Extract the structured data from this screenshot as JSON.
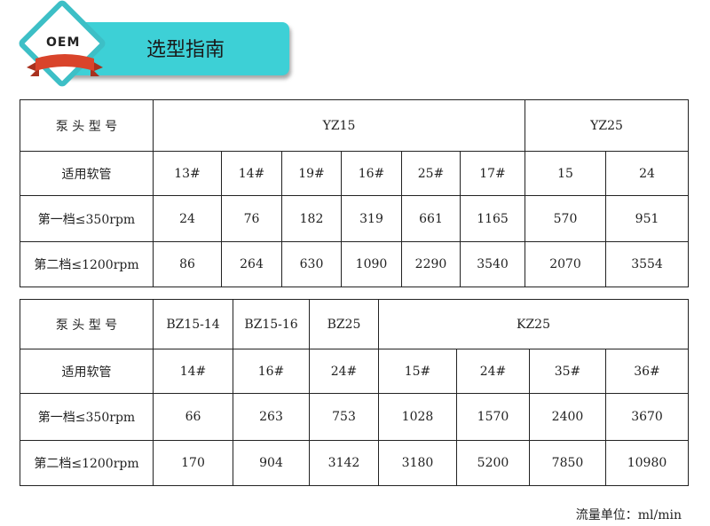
{
  "header": {
    "badge": "OEM",
    "title": "选型指南"
  },
  "table1": {
    "rows": [
      [
        {
          "t": "泵 头 型 号"
        },
        {
          "t": "YZ15",
          "span": 6
        },
        {
          "t": "YZ25",
          "span": 2
        }
      ],
      [
        {
          "t": "适用软管"
        },
        {
          "t": "13#"
        },
        {
          "t": "14#"
        },
        {
          "t": "19#"
        },
        {
          "t": "16#"
        },
        {
          "t": "25#"
        },
        {
          "t": "17#"
        },
        {
          "t": "15"
        },
        {
          "t": "24"
        }
      ],
      [
        {
          "t": "第一档≤350rpm"
        },
        {
          "t": "24"
        },
        {
          "t": "76"
        },
        {
          "t": "182"
        },
        {
          "t": "319"
        },
        {
          "t": "661"
        },
        {
          "t": "1165"
        },
        {
          "t": "570"
        },
        {
          "t": "951"
        }
      ],
      [
        {
          "t": "第二档≤1200rpm"
        },
        {
          "t": "86"
        },
        {
          "t": "264"
        },
        {
          "t": "630"
        },
        {
          "t": "1090"
        },
        {
          "t": "2290"
        },
        {
          "t": "3540"
        },
        {
          "t": "2070"
        },
        {
          "t": "3554"
        }
      ]
    ]
  },
  "table2": {
    "rows": [
      [
        {
          "t": "泵 头 型 号"
        },
        {
          "t": "BZ15-14"
        },
        {
          "t": "BZ15-16"
        },
        {
          "t": "BZ25"
        },
        {
          "t": "KZ25",
          "span": 4
        }
      ],
      [
        {
          "t": "适用软管"
        },
        {
          "t": "14#"
        },
        {
          "t": "16#"
        },
        {
          "t": "24#"
        },
        {
          "t": "15#"
        },
        {
          "t": "24#"
        },
        {
          "t": "35#"
        },
        {
          "t": "36#"
        }
      ],
      [
        {
          "t": "第一档≤350rpm"
        },
        {
          "t": "66"
        },
        {
          "t": "263"
        },
        {
          "t": "753"
        },
        {
          "t": "1028"
        },
        {
          "t": "1570"
        },
        {
          "t": "2400"
        },
        {
          "t": "3670"
        }
      ],
      [
        {
          "t": "第二档≤1200rpm"
        },
        {
          "t": "170"
        },
        {
          "t": "904"
        },
        {
          "t": "3142"
        },
        {
          "t": "3180"
        },
        {
          "t": "5200"
        },
        {
          "t": "7850"
        },
        {
          "t": "10980"
        }
      ]
    ]
  },
  "footer": {
    "unit": "流量单位：ml/min"
  },
  "colors": {
    "banner": "#3dd0d6",
    "badge_border": "#3dbfc6",
    "ribbon": "#d9442b"
  }
}
